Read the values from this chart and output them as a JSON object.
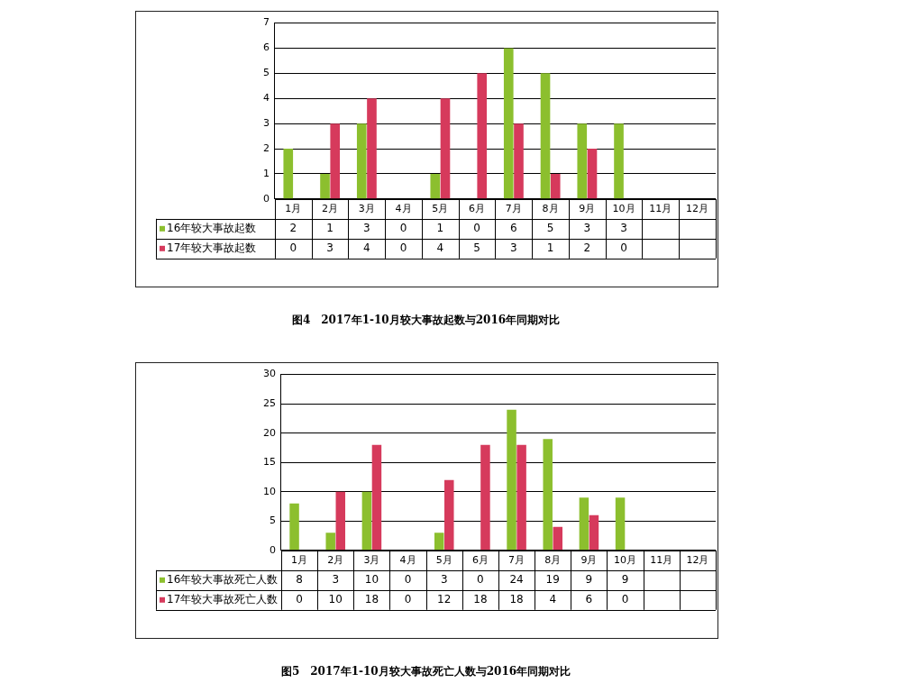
{
  "chart_data": [
    {
      "type": "bar",
      "title": "图4　2017年1-10月较大事故起数与2016年同期对比",
      "categories": [
        "1月",
        "2月",
        "3月",
        "4月",
        "5月",
        "6月",
        "7月",
        "8月",
        "9月",
        "10月",
        "11月",
        "12月"
      ],
      "series": [
        {
          "name": "16年较大事故起数",
          "color": "#8cbf2e",
          "values": [
            2,
            1,
            3,
            0,
            1,
            0,
            6,
            5,
            3,
            3,
            null,
            null
          ]
        },
        {
          "name": "17年较大事故起数",
          "color": "#d63a5c",
          "values": [
            0,
            3,
            4,
            0,
            4,
            5,
            3,
            1,
            2,
            0,
            null,
            null
          ]
        }
      ],
      "ylim": [
        0,
        7
      ],
      "yticks": [
        0,
        1,
        2,
        3,
        4,
        5,
        6,
        7
      ],
      "grid": "y",
      "legend": "bottom",
      "data_labels": true
    },
    {
      "type": "bar",
      "title": "图5　2017年1-10月较大事故死亡人数与2016年同期对比",
      "categories": [
        "1月",
        "2月",
        "3月",
        "4月",
        "5月",
        "6月",
        "7月",
        "8月",
        "9月",
        "10月",
        "11月",
        "12月"
      ],
      "series": [
        {
          "name": "16年较大事故死亡人数",
          "color": "#8cbf2e",
          "values": [
            8,
            3,
            10,
            0,
            3,
            0,
            24,
            19,
            9,
            9,
            null,
            null
          ]
        },
        {
          "name": "17年较大事故死亡人数",
          "color": "#d63a5c",
          "values": [
            0,
            10,
            18,
            0,
            12,
            18,
            18,
            4,
            6,
            0,
            null,
            null
          ]
        }
      ],
      "ylim": [
        0,
        30
      ],
      "yticks": [
        0,
        5,
        10,
        15,
        20,
        25,
        30
      ],
      "grid": "y",
      "legend": "bottom",
      "data_labels": true
    }
  ]
}
